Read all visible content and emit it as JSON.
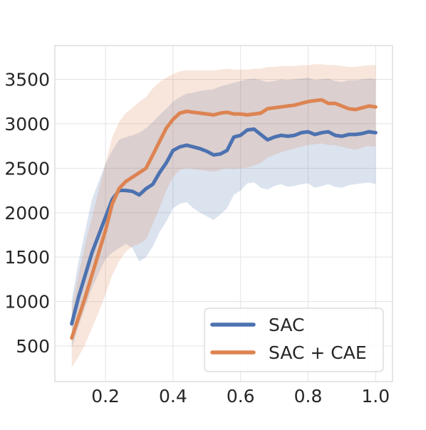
{
  "chart_data": {
    "type": "line",
    "title": "",
    "xlabel": "",
    "ylabel": "",
    "xlim": [
      0.05,
      1.05
    ],
    "ylim": [
      100,
      3880
    ],
    "x_ticks": [
      0.2,
      0.4,
      0.6,
      0.8,
      1.0
    ],
    "x_tick_labels": [
      "0.2",
      "0.4",
      "0.6",
      "0.8",
      "1.0"
    ],
    "y_ticks": [
      500,
      1000,
      1500,
      2000,
      2500,
      3000,
      3500
    ],
    "y_tick_labels": [
      "500",
      "1000",
      "1500",
      "2000",
      "2500",
      "3000",
      "3500"
    ],
    "grid": true,
    "legend_position": "bottom-right",
    "series": [
      {
        "name": "SAC",
        "color": "#4c72b0",
        "x": [
          0.1,
          0.12,
          0.14,
          0.16,
          0.18,
          0.2,
          0.22,
          0.24,
          0.26,
          0.28,
          0.3,
          0.32,
          0.34,
          0.36,
          0.38,
          0.4,
          0.42,
          0.44,
          0.46,
          0.48,
          0.5,
          0.52,
          0.54,
          0.56,
          0.58,
          0.6,
          0.62,
          0.64,
          0.66,
          0.68,
          0.7,
          0.72,
          0.74,
          0.76,
          0.78,
          0.8,
          0.82,
          0.84,
          0.86,
          0.88,
          0.9,
          0.92,
          0.94,
          0.96,
          0.98,
          1.0
        ],
        "values": [
          750,
          1050,
          1300,
          1550,
          1750,
          1950,
          2150,
          2250,
          2250,
          2240,
          2200,
          2270,
          2320,
          2450,
          2560,
          2700,
          2740,
          2760,
          2740,
          2720,
          2690,
          2650,
          2660,
          2700,
          2850,
          2870,
          2930,
          2940,
          2880,
          2820,
          2850,
          2870,
          2860,
          2870,
          2900,
          2910,
          2880,
          2900,
          2910,
          2870,
          2860,
          2880,
          2880,
          2890,
          2910,
          2900
        ],
        "lower": [
          480,
          720,
          940,
          1150,
          1320,
          1480,
          1550,
          1600,
          1650,
          1600,
          1450,
          1500,
          1620,
          1780,
          1900,
          2050,
          2100,
          2120,
          2050,
          2000,
          1960,
          1920,
          1980,
          2050,
          2200,
          2250,
          2330,
          2340,
          2280,
          2260,
          2300,
          2320,
          2290,
          2300,
          2320,
          2330,
          2280,
          2300,
          2320,
          2290,
          2280,
          2310,
          2320,
          2330,
          2340,
          2320
        ],
        "upper": [
          1020,
          1450,
          1800,
          2150,
          2350,
          2550,
          2700,
          2820,
          2850,
          2870,
          2900,
          2950,
          3020,
          3100,
          3170,
          3250,
          3300,
          3340,
          3350,
          3370,
          3380,
          3390,
          3420,
          3440,
          3460,
          3480,
          3500,
          3510,
          3490,
          3470,
          3480,
          3500,
          3490,
          3500,
          3510,
          3520,
          3490,
          3500,
          3510,
          3480,
          3470,
          3490,
          3490,
          3500,
          3510,
          3500
        ]
      },
      {
        "name": "SAC + CAE",
        "color": "#dd8452",
        "x": [
          0.1,
          0.12,
          0.14,
          0.16,
          0.18,
          0.2,
          0.22,
          0.24,
          0.26,
          0.28,
          0.3,
          0.32,
          0.34,
          0.36,
          0.38,
          0.4,
          0.42,
          0.44,
          0.46,
          0.48,
          0.5,
          0.52,
          0.54,
          0.56,
          0.58,
          0.6,
          0.62,
          0.64,
          0.66,
          0.68,
          0.7,
          0.72,
          0.74,
          0.76,
          0.78,
          0.8,
          0.82,
          0.84,
          0.86,
          0.88,
          0.9,
          0.92,
          0.94,
          0.96,
          0.98,
          1.0
        ],
        "values": [
          590,
          820,
          1050,
          1300,
          1550,
          1800,
          2100,
          2270,
          2350,
          2400,
          2450,
          2500,
          2650,
          2800,
          2950,
          3050,
          3120,
          3140,
          3130,
          3120,
          3110,
          3100,
          3120,
          3130,
          3110,
          3110,
          3100,
          3110,
          3120,
          3170,
          3180,
          3190,
          3200,
          3210,
          3230,
          3250,
          3260,
          3270,
          3230,
          3230,
          3200,
          3170,
          3160,
          3180,
          3200,
          3190
        ],
        "lower": [
          260,
          380,
          520,
          700,
          880,
          1080,
          1300,
          1450,
          1560,
          1620,
          1650,
          1700,
          1870,
          2050,
          2250,
          2400,
          2480,
          2500,
          2490,
          2480,
          2470,
          2460,
          2480,
          2500,
          2490,
          2500,
          2510,
          2530,
          2560,
          2620,
          2650,
          2680,
          2700,
          2720,
          2740,
          2760,
          2770,
          2780,
          2760,
          2760,
          2740,
          2720,
          2710,
          2730,
          2750,
          2740
        ],
        "upper": [
          920,
          1300,
          1650,
          1950,
          2250,
          2550,
          2850,
          3020,
          3120,
          3180,
          3250,
          3300,
          3400,
          3470,
          3520,
          3560,
          3590,
          3600,
          3600,
          3600,
          3600,
          3600,
          3610,
          3620,
          3610,
          3610,
          3610,
          3620,
          3620,
          3640,
          3640,
          3650,
          3650,
          3650,
          3660,
          3660,
          3670,
          3670,
          3660,
          3660,
          3650,
          3640,
          3640,
          3650,
          3660,
          3660
        ]
      }
    ]
  }
}
